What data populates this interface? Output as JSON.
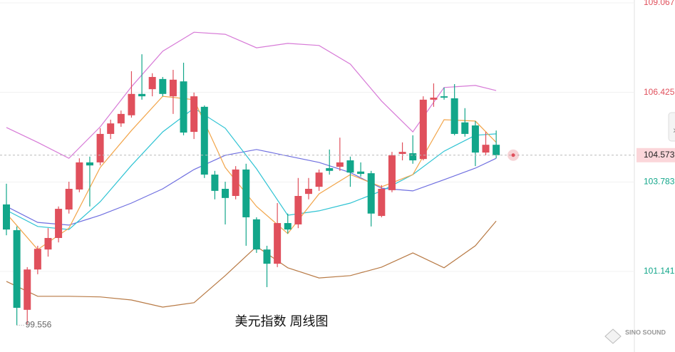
{
  "chart_data": {
    "type": "candlestick",
    "title": "美元指数 周线图",
    "categories": [
      null,
      null,
      null,
      null,
      null,
      null,
      null,
      null,
      null,
      null,
      null,
      null,
      null,
      null,
      null,
      null,
      null,
      null,
      null,
      null,
      null,
      null,
      null,
      null,
      null,
      null,
      null,
      null,
      null,
      null,
      null,
      null,
      null,
      null,
      null,
      null,
      null,
      null,
      null,
      null,
      null,
      null,
      null,
      null,
      null,
      null,
      null,
      null
    ],
    "open": [
      103.12,
      102.36,
      100.01,
      101.2,
      101.79,
      102.13,
      102.97,
      103.56,
      104.36,
      104.36,
      105.2,
      105.51,
      105.75,
      106.38,
      106.52,
      106.82,
      106.31,
      106.75,
      105.26,
      106.0,
      104.0,
      103.58,
      103.37,
      104.15,
      102.68,
      101.79,
      101.37,
      102.57,
      102.53,
      103.43,
      103.64,
      104.19,
      104.23,
      104.42,
      104.09,
      104.04,
      102.78,
      103.54,
      104.61,
      104.63,
      104.46,
      106.21,
      106.31,
      106.25,
      105.54,
      105.45,
      104.65,
      104.88
    ],
    "high": [
      103.73,
      102.47,
      101.27,
      101.9,
      102.42,
      103.06,
      103.79,
      104.48,
      104.53,
      105.37,
      105.62,
      105.89,
      107.05,
      107.55,
      106.99,
      106.88,
      107.09,
      107.3,
      106.42,
      106.04,
      104.11,
      103.79,
      104.25,
      104.32,
      102.74,
      101.9,
      103.16,
      102.85,
      103.9,
      103.9,
      104.15,
      104.74,
      105.09,
      104.53,
      104.36,
      104.11,
      103.69,
      104.67,
      104.95,
      105.16,
      106.31,
      106.69,
      106.57,
      106.67,
      105.96,
      105.58,
      105.26,
      105.3
    ],
    "low": [
      102.21,
      99.556,
      99.59,
      101.06,
      101.58,
      102.0,
      102.85,
      103.48,
      103.06,
      104.27,
      105.05,
      105.41,
      105.68,
      106.21,
      106.31,
      106.31,
      105.79,
      105.16,
      105.05,
      103.9,
      103.27,
      102.53,
      103.27,
      101.9,
      101.69,
      100.68,
      101.27,
      102.26,
      102.42,
      103.27,
      103.52,
      104.0,
      104.11,
      103.64,
      103.94,
      102.47,
      102.74,
      103.48,
      104.42,
      104.32,
      104.42,
      106.0,
      106.21,
      105.16,
      105.12,
      104.25,
      104.57,
      104.48
    ],
    "close": [
      102.38,
      100.07,
      101.2,
      101.81,
      102.13,
      102.99,
      103.58,
      104.36,
      104.27,
      105.2,
      105.51,
      105.79,
      106.38,
      106.31,
      106.88,
      106.38,
      106.8,
      105.24,
      106.31,
      104.0,
      103.52,
      103.31,
      104.15,
      102.74,
      101.79,
      101.37,
      102.57,
      102.38,
      103.37,
      103.58,
      104.06,
      104.11,
      104.36,
      104.06,
      104.02,
      102.85,
      103.58,
      104.57,
      104.67,
      104.42,
      106.21,
      106.27,
      106.27,
      105.2,
      105.2,
      104.65,
      104.88,
      104.573
    ],
    "up_color": "#e0505c",
    "down_color": "#12a68a",
    "lines": [
      {
        "color": "#d77ad7",
        "x": [
          0,
          3,
          6,
          9,
          12,
          15,
          18,
          21,
          24,
          27,
          30,
          33,
          36,
          39,
          42,
          45,
          47
        ],
        "values": [
          105.39,
          104.95,
          104.48,
          105.41,
          106.59,
          107.64,
          108.2,
          108.14,
          107.74,
          107.87,
          107.81,
          107.26,
          106.17,
          105.26,
          106.57,
          106.63,
          106.48
        ]
      },
      {
        "color": "#b87a45",
        "x": [
          0,
          3,
          6,
          9,
          12,
          15,
          18,
          21,
          24,
          27,
          30,
          33,
          36,
          39,
          42,
          45,
          47
        ],
        "values": [
          100.85,
          100.41,
          100.41,
          100.39,
          100.3,
          100.09,
          100.22,
          101.02,
          101.88,
          101.25,
          100.95,
          101.02,
          101.27,
          101.69,
          101.25,
          101.9,
          102.63
        ]
      },
      {
        "color": "#6f6fe0",
        "x": [
          0,
          3,
          6,
          9,
          12,
          15,
          18,
          21,
          24,
          27,
          30,
          33,
          36,
          39,
          42,
          45,
          47
        ],
        "values": [
          103.06,
          102.59,
          102.51,
          102.8,
          103.16,
          103.58,
          104.15,
          104.57,
          104.74,
          104.55,
          104.36,
          104.06,
          103.6,
          103.52,
          103.85,
          104.19,
          104.48
        ]
      },
      {
        "color": "#2ec3d3",
        "x": [
          0,
          3,
          6,
          9,
          12,
          15,
          18,
          21,
          24,
          27,
          30,
          33,
          36,
          39,
          42,
          45,
          47
        ],
        "values": [
          102.95,
          102.47,
          102.38,
          103.2,
          104.27,
          105.26,
          105.96,
          105.37,
          104.17,
          102.8,
          102.93,
          103.16,
          103.52,
          104.0,
          104.69,
          105.16,
          105.2
        ]
      },
      {
        "color": "#f2a54a",
        "x": [
          0,
          3,
          6,
          9,
          12,
          15,
          18,
          21,
          24,
          27,
          30,
          33,
          36,
          39,
          42,
          45,
          47
        ],
        "values": [
          102.85,
          101.79,
          102.42,
          104.21,
          105.3,
          106.31,
          106.21,
          104.21,
          103.06,
          102.26,
          103.43,
          104.0,
          103.64,
          104.0,
          105.62,
          105.58,
          104.95
        ]
      }
    ],
    "ylim": [
      98.766,
      109.151
    ],
    "yticks": [
      109.067,
      106.425,
      103.783,
      101.141
    ],
    "grid": true,
    "brand": "SINO SOUND"
  }
}
